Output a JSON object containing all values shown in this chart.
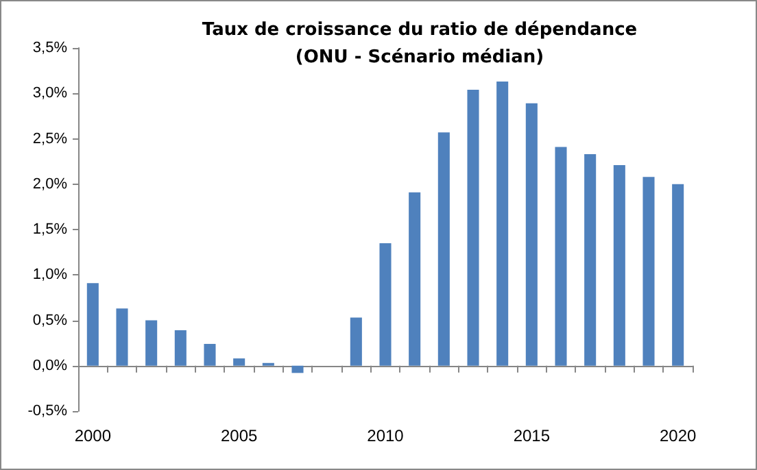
{
  "chart_data": {
    "type": "bar",
    "title": "Taux de croissance du ratio de dépendance\n(ONU - Scénario médian)",
    "categories": [
      "2000",
      null,
      null,
      null,
      null,
      "2005",
      null,
      null,
      null,
      null,
      "2010",
      null,
      null,
      null,
      null,
      "2015",
      null,
      null,
      null,
      null,
      "2020"
    ],
    "series": [
      {
        "color": "#4f81bd",
        "values": [
          0.91,
          0.63,
          0.5,
          0.39,
          0.24,
          0.08,
          0.03,
          -0.08,
          0,
          0.53,
          1.35,
          1.91,
          2.57,
          3.04,
          3.13,
          2.89,
          2.41,
          2.33,
          2.21,
          2.08,
          2.0
        ]
      }
    ],
    "ylim": [
      -0.5,
      3.5
    ],
    "yticks": [
      {
        "value": -0.5,
        "label": "-0,5%"
      },
      {
        "value": 0,
        "label": "0,0%"
      },
      {
        "value": 0.5,
        "label": "0,5%"
      },
      {
        "value": 1,
        "label": "1,0%"
      },
      {
        "value": 1.5,
        "label": "1,5%"
      },
      {
        "value": 2,
        "label": "2,0%"
      },
      {
        "value": 2.5,
        "label": "2,5%"
      },
      {
        "value": 3,
        "label": "3,0%"
      },
      {
        "value": 3.5,
        "label": "3,5%"
      }
    ]
  }
}
